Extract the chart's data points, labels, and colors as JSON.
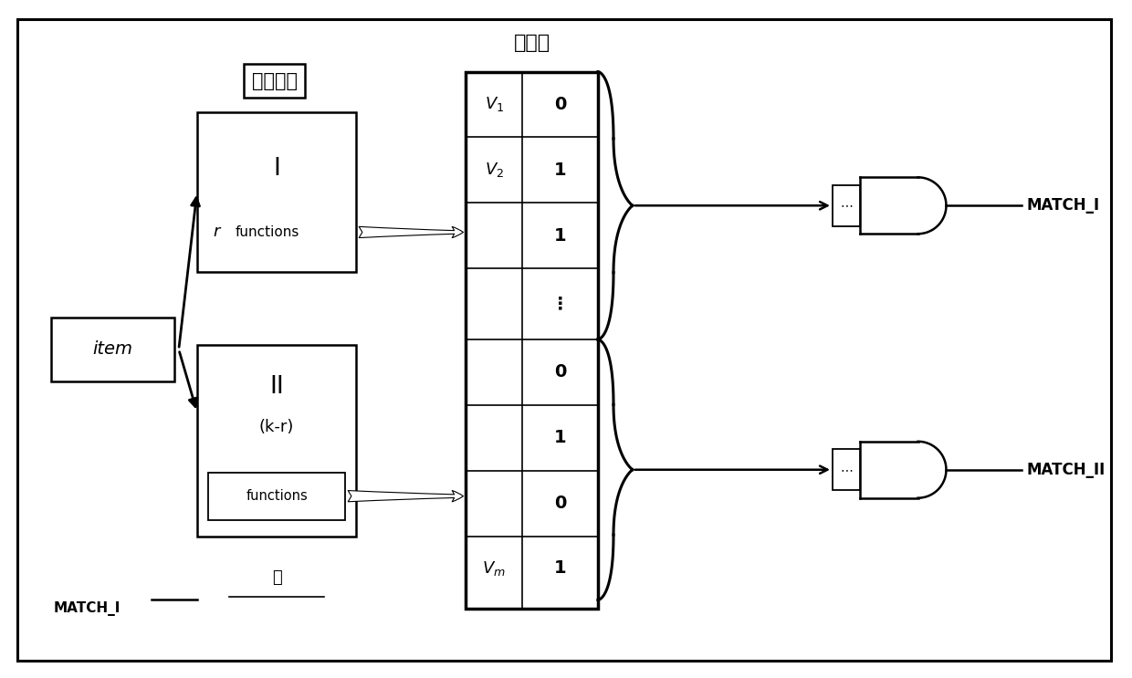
{
  "figsize": [
    12.4,
    7.43
  ],
  "dpi": 100,
  "chinese_hash_func": "哈希函数",
  "chinese_hash_table": "哈希表",
  "item_text": "item",
  "match_i": "MATCH_I",
  "match_ii": "MATCH_II",
  "ht_values": [
    "0",
    "1",
    "1",
    "⋮",
    "0",
    "1",
    "0",
    "1"
  ],
  "ht_left_labels": [
    "V1",
    "V2",
    "",
    "",
    "",
    "",
    "",
    "Vm"
  ]
}
